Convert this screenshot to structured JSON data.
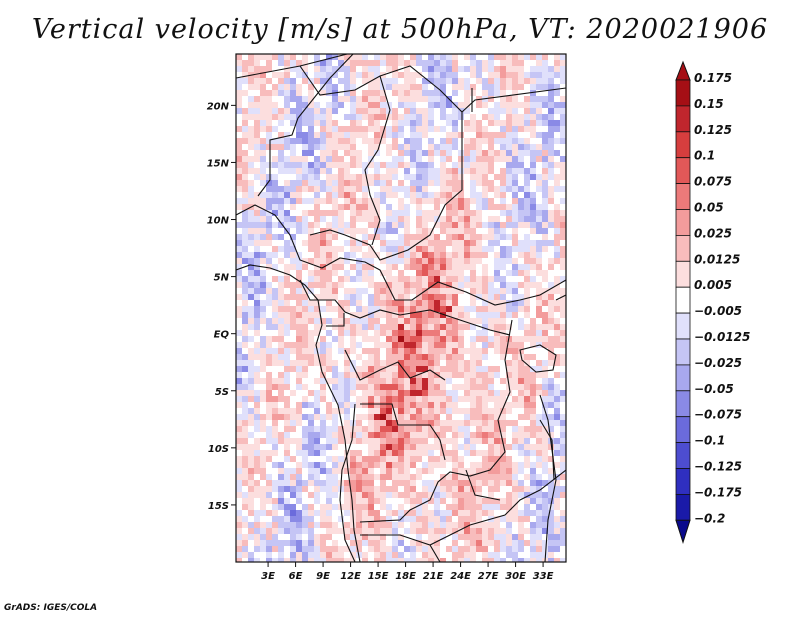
{
  "chart_data": {
    "type": "heatmap",
    "title": "Vertical velocity [m/s] at 500hPa, VT: 2020021906",
    "variable": "Vertical velocity",
    "units": "m/s",
    "level": "500hPa",
    "valid_time": "2020021906",
    "x_axis": {
      "range": [
        -0.5,
        35.5
      ],
      "ticks": [
        3,
        6,
        9,
        12,
        15,
        18,
        21,
        24,
        27,
        30,
        33
      ],
      "tick_labels": [
        "3E",
        "6E",
        "9E",
        "12E",
        "15E",
        "18E",
        "21E",
        "24E",
        "27E",
        "30E",
        "33E"
      ]
    },
    "y_axis": {
      "range": [
        -20,
        24.5
      ],
      "ticks": [
        20,
        15,
        10,
        5,
        0,
        -5,
        -10,
        -15
      ],
      "tick_labels": [
        "20N",
        "15N",
        "10N",
        "5N",
        "EQ",
        "5S",
        "10S",
        "15S"
      ]
    },
    "colorbar": {
      "levels": [
        0.175,
        0.15,
        0.125,
        0.1,
        0.075,
        0.05,
        0.025,
        0.0125,
        0.005,
        -0.005,
        -0.0125,
        -0.025,
        -0.05,
        -0.075,
        -0.1,
        -0.125,
        -0.175,
        -0.2
      ],
      "labels": [
        "0.175",
        "0.15",
        "0.125",
        "0.1",
        "0.075",
        "0.05",
        "0.025",
        "0.0125",
        "0.005",
        "−0.005",
        "−0.0125",
        "−0.025",
        "−0.05",
        "−0.075",
        "−0.1",
        "−0.125",
        "−0.175",
        "−0.2"
      ],
      "colors": [
        "#a50f15",
        "#a50f15",
        "#c0262d",
        "#d63e3e",
        "#e25858",
        "#ec7a7a",
        "#f39c9c",
        "#f8bcbc",
        "#fcdede",
        "#ffffff",
        "#e0e0fb",
        "#c5c5f5",
        "#a8a8ee",
        "#8a8ae6",
        "#6b6bdc",
        "#4d4dd0",
        "#2f2fc0",
        "#1a1aa8",
        "#0a0a8c"
      ]
    }
  },
  "credit": "GrADS: IGES/COLA"
}
